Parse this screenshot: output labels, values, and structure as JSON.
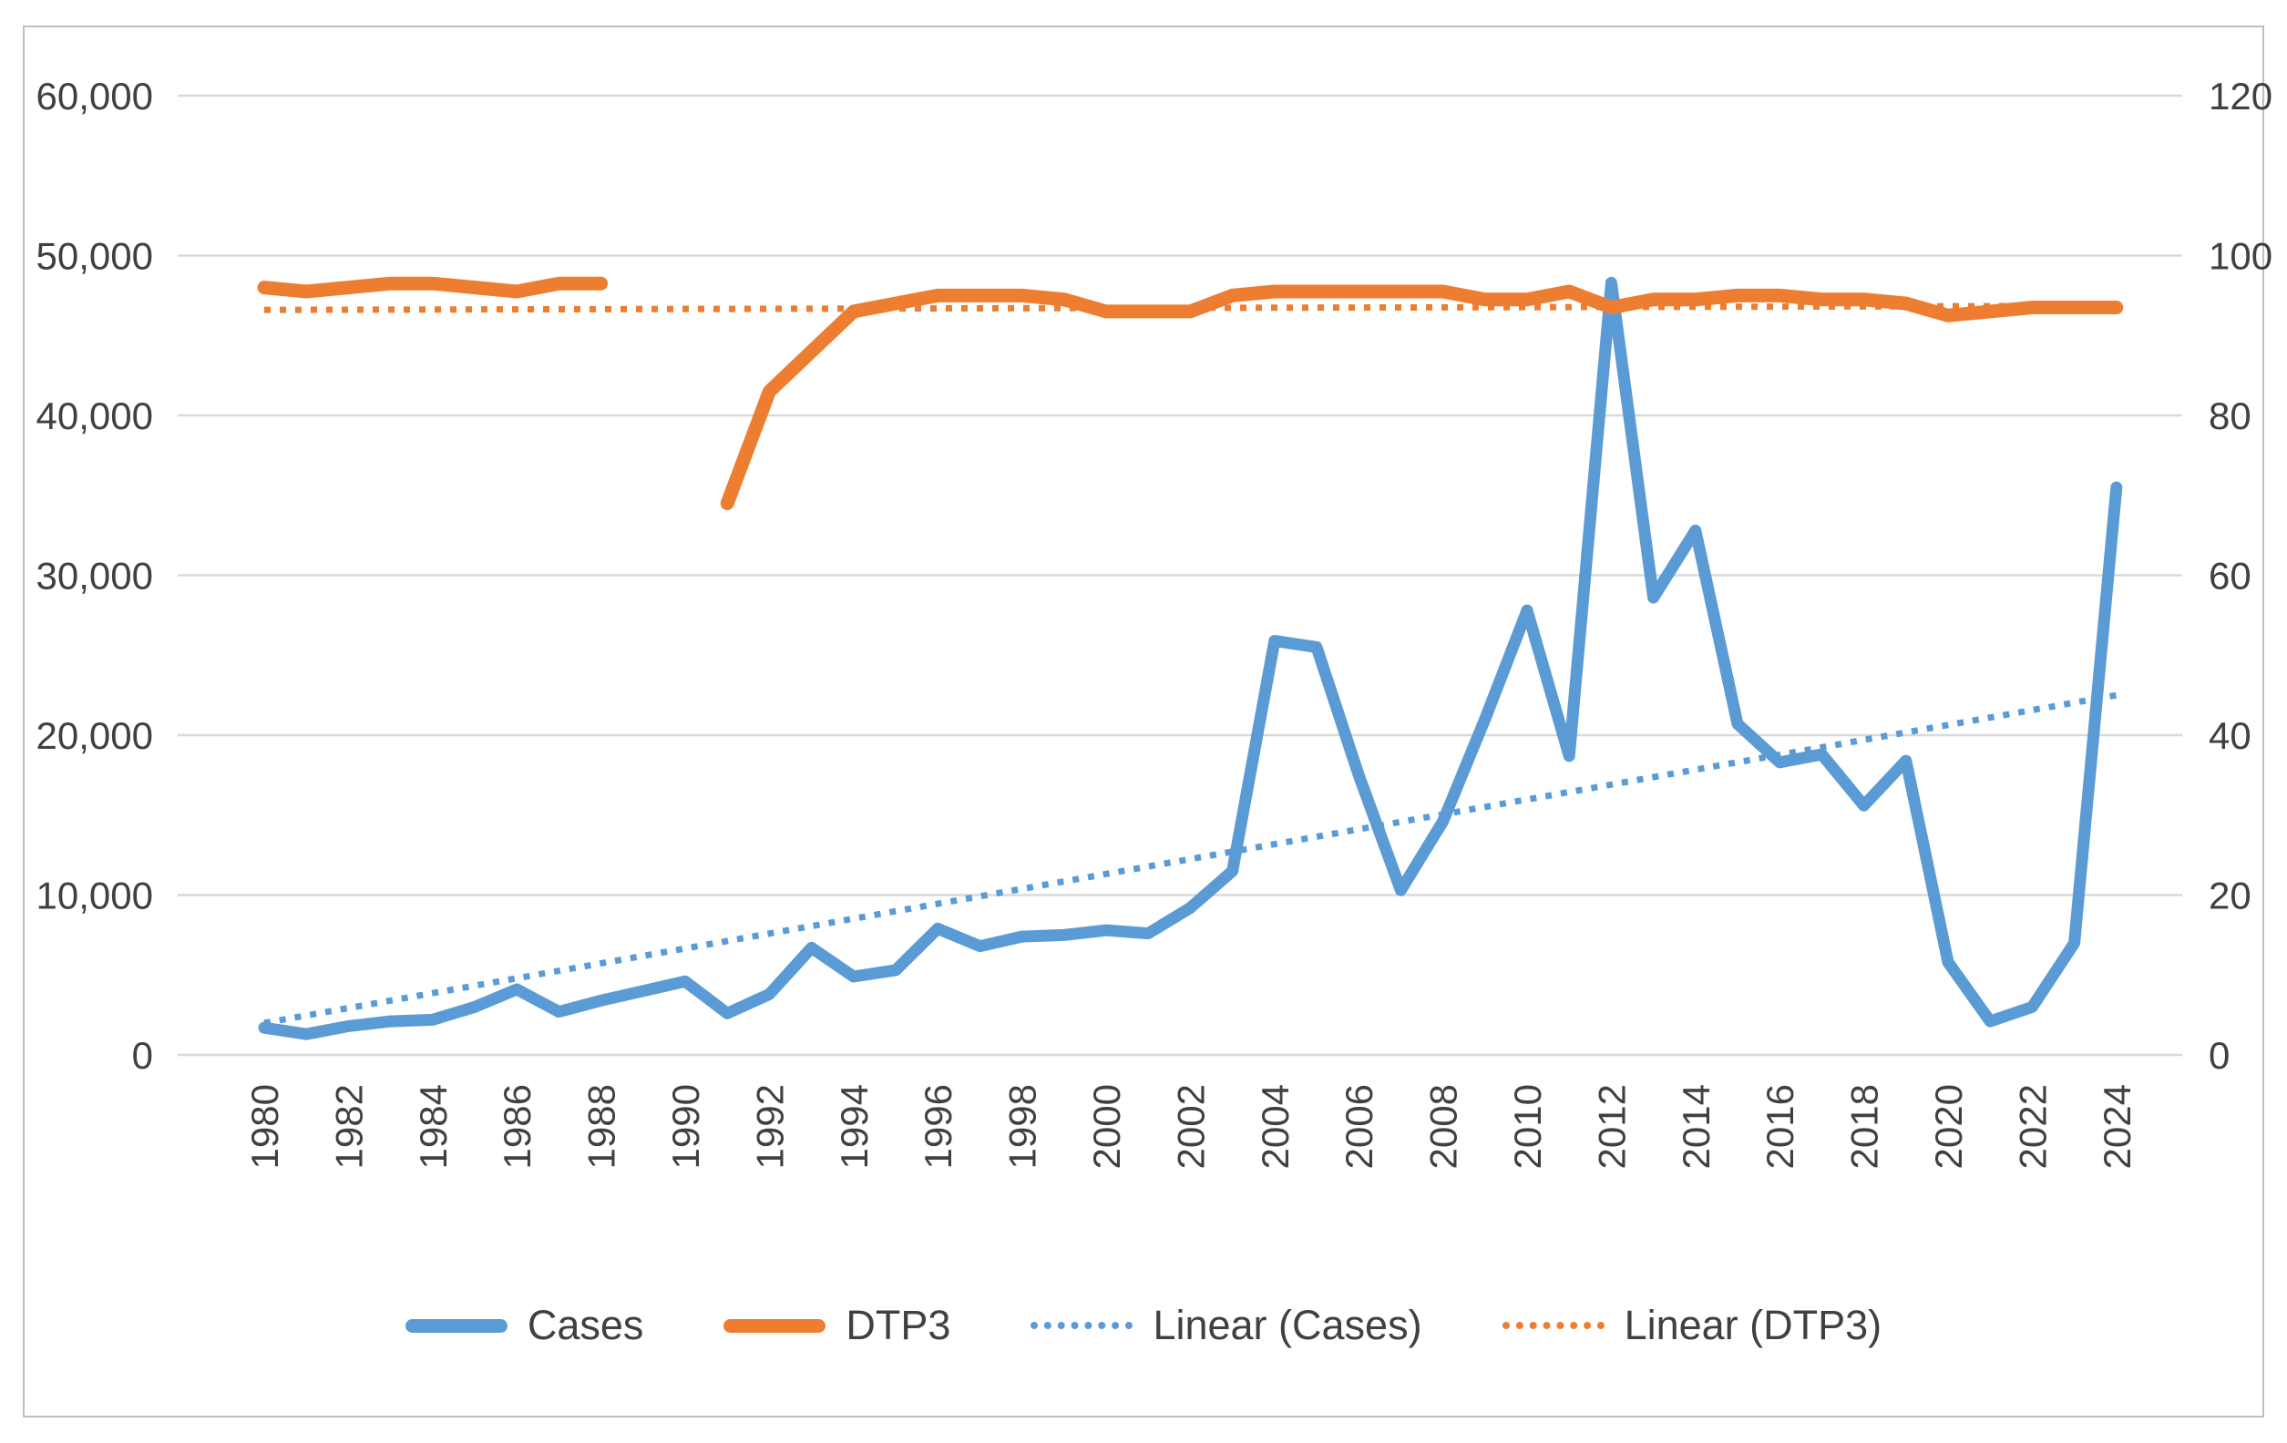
{
  "chart_data": {
    "type": "line",
    "title": "",
    "x_years": [
      1980,
      1981,
      1982,
      1983,
      1984,
      1985,
      1986,
      1987,
      1988,
      1989,
      1990,
      1991,
      1992,
      1993,
      1994,
      1995,
      1996,
      1997,
      1998,
      1999,
      2000,
      2001,
      2002,
      2003,
      2004,
      2005,
      2006,
      2007,
      2008,
      2009,
      2010,
      2011,
      2012,
      2013,
      2014,
      2015,
      2016,
      2017,
      2018,
      2019,
      2020,
      2021,
      2022,
      2023,
      2024
    ],
    "x_tick_labels": [
      "1980",
      "1982",
      "1984",
      "1986",
      "1988",
      "1990",
      "1992",
      "1994",
      "1996",
      "1998",
      "2000",
      "2002",
      "2004",
      "2006",
      "2008",
      "2010",
      "2012",
      "2014",
      "2016",
      "2018",
      "2020",
      "2022",
      "2024"
    ],
    "left_axis": {
      "min": 0,
      "max": 60000,
      "step": 10000,
      "tick_labels": [
        "0",
        "10,000",
        "20,000",
        "30,000",
        "40,000",
        "50,000",
        "60,000"
      ]
    },
    "right_axis": {
      "min": 0,
      "max": 120,
      "step": 20,
      "tick_labels": [
        "0",
        "20",
        "40",
        "60",
        "80",
        "100",
        "120"
      ]
    },
    "grid": true,
    "legend_position": "bottom",
    "series": [
      {
        "name": "Cases",
        "axis": "left",
        "style": "solid",
        "color": "#5b9bd5",
        "values": [
          1700,
          1300,
          1800,
          2100,
          2200,
          3000,
          4100,
          2700,
          3400,
          4000,
          4600,
          2600,
          3800,
          6700,
          4900,
          5300,
          7900,
          6800,
          7400,
          7500,
          7800,
          7600,
          9200,
          11500,
          25900,
          25500,
          17500,
          10300,
          14600,
          21000,
          27800,
          18700,
          48300,
          28600,
          32800,
          20700,
          18300,
          18800,
          15600,
          18400,
          5800,
          2100,
          3000,
          7000,
          35500
        ]
      },
      {
        "name": "DTP3",
        "axis": "right",
        "style": "solid",
        "color": "#ed7d31",
        "values": [
          96,
          95.5,
          96,
          96.5,
          96.5,
          96,
          95.5,
          96.5,
          96.5,
          null,
          null,
          69,
          83,
          88,
          93,
          94,
          95,
          95,
          95,
          94.5,
          93,
          93,
          93,
          95,
          95.5,
          95.5,
          95.5,
          95.5,
          95.5,
          94.5,
          94.5,
          95.5,
          93.5,
          94.5,
          94.5,
          95,
          95,
          94.5,
          94.5,
          94,
          92.5,
          93,
          93.5,
          93.5,
          93.5
        ]
      }
    ],
    "trendlines": [
      {
        "name": "Linear (Cases)",
        "axis": "left",
        "style": "dotted",
        "color": "#5b9bd5",
        "start_value": 2000,
        "end_value": 22500
      },
      {
        "name": "Linear (DTP3)",
        "axis": "right",
        "style": "dotted",
        "color": "#ed7d31",
        "start_value": 93.2,
        "end_value": 93.7
      }
    ],
    "legend": [
      {
        "label": "Cases",
        "color": "#5b9bd5",
        "style": "solid"
      },
      {
        "label": "DTP3",
        "color": "#ed7d31",
        "style": "solid"
      },
      {
        "label": "Linear (Cases)",
        "color": "#5b9bd5",
        "style": "dotted"
      },
      {
        "label": "Linear (DTP3)",
        "color": "#ed7d31",
        "style": "dotted"
      }
    ]
  },
  "colors": {
    "gridline": "#d9d9d9",
    "axis_text": "#404040",
    "border": "#bfbfbf",
    "background": "#ffffff"
  }
}
